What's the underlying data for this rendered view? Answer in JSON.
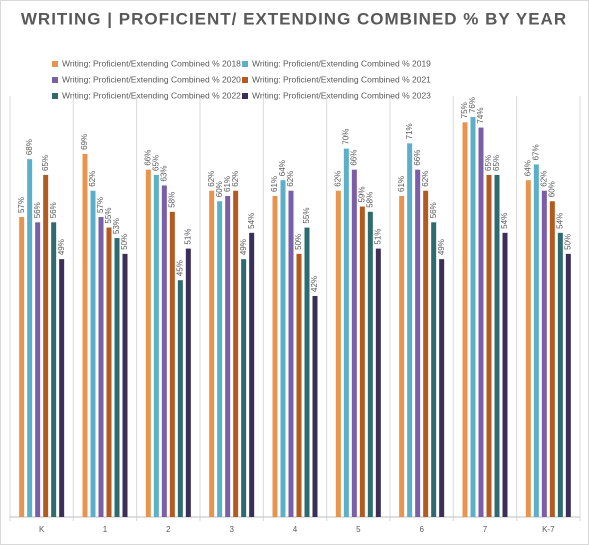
{
  "chart_data": {
    "type": "bar",
    "title": "WRITING | PROFICIENT/ EXTENDING COMBINED % BY YEAR",
    "categories": [
      "K",
      "1",
      "2",
      "3",
      "4",
      "5",
      "6",
      "7",
      "K-7"
    ],
    "ylim": [
      0,
      80
    ],
    "series": [
      {
        "name": "Writing: Proficient/Extending Combined %  2018",
        "color": "#E8944F",
        "values": [
          57,
          69,
          66,
          62,
          61,
          62,
          61,
          75,
          64
        ],
        "value_labels": [
          "57%",
          "69%",
          "66%",
          "62%",
          "61%",
          "62%",
          "61%",
          "75%",
          "64%"
        ]
      },
      {
        "name": "Writing: Proficient/Extending Combined %  2019",
        "color": "#5BAFC8",
        "values": [
          68,
          62,
          65,
          60,
          64,
          70,
          71,
          76,
          67
        ],
        "value_labels": [
          "68%",
          "62%",
          "65%",
          "60%",
          "64%",
          "70%",
          "71%",
          "76%",
          "67%"
        ]
      },
      {
        "name": "Writing: Proficient/Extending Combined %  2020",
        "color": "#7A5FA8",
        "values": [
          56,
          57,
          63,
          61,
          62,
          66,
          66,
          74,
          62
        ],
        "value_labels": [
          "56%",
          "57%",
          "63%",
          "61%",
          "62%",
          "66%",
          "66%",
          "74%",
          "62%"
        ]
      },
      {
        "name": "Writing: Proficient/Extending Combined %  2021",
        "color": "#B35A1F",
        "values": [
          65,
          55,
          58,
          62,
          50,
          59,
          62,
          65,
          60
        ],
        "value_labels": [
          "65%",
          "55%",
          "58%",
          "62%",
          "50%",
          "59%",
          "62%",
          "65%",
          "60%"
        ]
      },
      {
        "name": "Writing: Proficient/Extending Combined %  2022",
        "color": "#2E6B70",
        "values": [
          56,
          53,
          45,
          49,
          55,
          58,
          56,
          65,
          54
        ],
        "value_labels": [
          "56%",
          "53%",
          "45%",
          "49%",
          "55%",
          "58%",
          "56%",
          "65%",
          "54%"
        ]
      },
      {
        "name": "Writing: Proficient/Extending Combined %  2023",
        "color": "#3B2F5A",
        "values": [
          49,
          50,
          51,
          54,
          42,
          51,
          49,
          54,
          50
        ],
        "value_labels": [
          "49%",
          "50%",
          "51%",
          "54%",
          "42%",
          "51%",
          "49%",
          "54%",
          "50%"
        ]
      }
    ],
    "grid": true
  }
}
